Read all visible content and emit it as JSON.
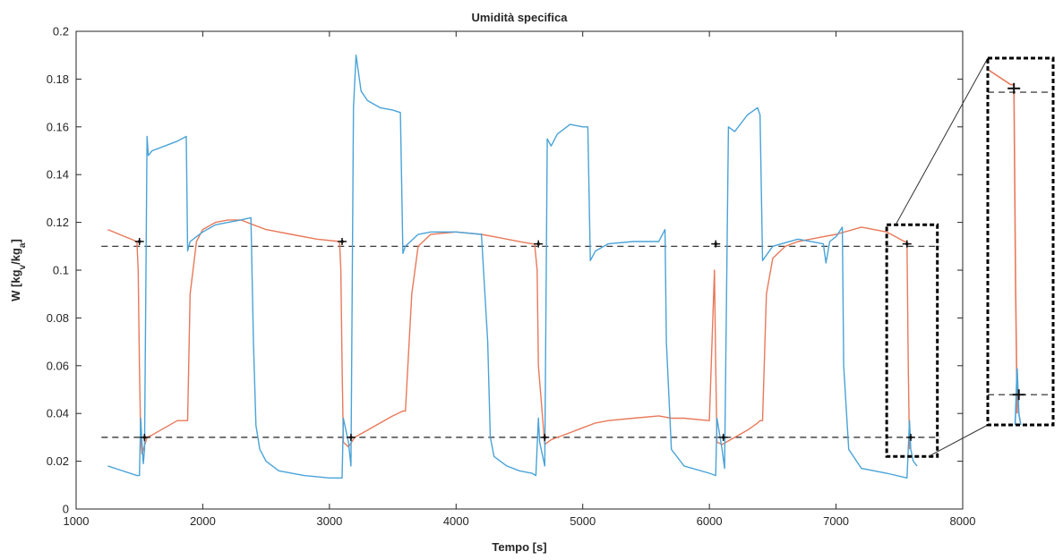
{
  "chart_data": {
    "type": "line",
    "title": "Umidità specifica",
    "xlabel": "Tempo [s]",
    "ylabel": {
      "main": "W [kg",
      "sub1": "v",
      "mid": "/kg",
      "sub2": "a",
      "end": "]"
    },
    "xlim": [
      1000,
      8000
    ],
    "ylim": [
      0,
      0.2
    ],
    "xticks": [
      "1000",
      "2000",
      "3000",
      "4000",
      "5000",
      "6000",
      "7000",
      "8000"
    ],
    "yticks": [
      "0",
      "0.02",
      "0.04",
      "0.06",
      "0.08",
      "0.1",
      "0.12",
      "0.14",
      "0.16",
      "0.18",
      "0.2"
    ],
    "grid": false,
    "reference_lines": [
      0.11,
      0.03
    ],
    "marker_points": [
      [
        1500,
        0.112
      ],
      [
        3100,
        0.112
      ],
      [
        4650,
        0.111
      ],
      [
        6050,
        0.111
      ],
      [
        7560,
        0.111
      ],
      [
        1540,
        0.03
      ],
      [
        3170,
        0.03
      ],
      [
        4700,
        0.03
      ],
      [
        6110,
        0.03
      ],
      [
        7590,
        0.03
      ]
    ],
    "series": [
      {
        "color": "#4aa3d8",
        "x": [
          1250,
          1480,
          1500,
          1510,
          1520,
          1530,
          1540,
          1560,
          1570,
          1600,
          1700,
          1800,
          1870,
          1880,
          1900,
          1950,
          2000,
          2100,
          2200,
          2300,
          2380,
          2400,
          2420,
          2450,
          2500,
          2600,
          2800,
          3000,
          3080,
          3100,
          3110,
          3150,
          3170,
          3190,
          3210,
          3250,
          3300,
          3400,
          3500,
          3560,
          3580,
          3600,
          3700,
          3800,
          4000,
          4200,
          4250,
          4270,
          4300,
          4400,
          4500,
          4600,
          4630,
          4650,
          4660,
          4700,
          4720,
          4750,
          4800,
          4900,
          5000,
          5040,
          5060,
          5100,
          5200,
          5400,
          5600,
          5650,
          5660,
          5700,
          5800,
          6000,
          6050,
          6060,
          6100,
          6120,
          6150,
          6200,
          6300,
          6380,
          6400,
          6420,
          6500,
          6700,
          6900,
          6920,
          6950,
          7000,
          7050,
          7060,
          7100,
          7200,
          7400,
          7560,
          7580,
          7590,
          7610,
          7640
        ],
        "y": [
          0.018,
          0.014,
          0.014,
          0.038,
          0.028,
          0.019,
          0.025,
          0.156,
          0.148,
          0.15,
          0.152,
          0.154,
          0.156,
          0.108,
          0.112,
          0.114,
          0.116,
          0.119,
          0.12,
          0.121,
          0.122,
          0.07,
          0.035,
          0.025,
          0.02,
          0.016,
          0.014,
          0.013,
          0.013,
          0.013,
          0.038,
          0.028,
          0.018,
          0.168,
          0.19,
          0.175,
          0.171,
          0.168,
          0.167,
          0.166,
          0.107,
          0.11,
          0.115,
          0.116,
          0.116,
          0.115,
          0.07,
          0.03,
          0.022,
          0.018,
          0.016,
          0.015,
          0.014,
          0.038,
          0.028,
          0.018,
          0.155,
          0.152,
          0.157,
          0.161,
          0.16,
          0.16,
          0.104,
          0.108,
          0.111,
          0.112,
          0.112,
          0.117,
          0.07,
          0.025,
          0.018,
          0.015,
          0.014,
          0.038,
          0.025,
          0.017,
          0.16,
          0.158,
          0.165,
          0.168,
          0.165,
          0.104,
          0.11,
          0.113,
          0.111,
          0.103,
          0.112,
          0.114,
          0.118,
          0.06,
          0.025,
          0.017,
          0.015,
          0.013,
          0.037,
          0.025,
          0.02,
          0.018
        ]
      },
      {
        "color": "#e8795a",
        "x": [
          1250,
          1480,
          1490,
          1500,
          1510,
          1520,
          1560,
          1600,
          1700,
          1800,
          1870,
          1880,
          1900,
          1950,
          2000,
          2100,
          2200,
          2300,
          2400,
          2500,
          2700,
          2900,
          3080,
          3090,
          3100,
          3110,
          3150,
          3200,
          3300,
          3400,
          3500,
          3580,
          3600,
          3650,
          3700,
          3800,
          4000,
          4200,
          4300,
          4400,
          4500,
          4600,
          4620,
          4640,
          4650,
          4700,
          4750,
          4800,
          4900,
          5000,
          5100,
          5200,
          5400,
          5600,
          5700,
          5800,
          6000,
          6040,
          6050,
          6060,
          6100,
          6200,
          6300,
          6380,
          6400,
          6420,
          6450,
          6500,
          6600,
          6700,
          6800,
          6900,
          7000,
          7200,
          7400,
          7540,
          7560,
          7570,
          7580
        ],
        "y": [
          0.117,
          0.112,
          0.1,
          0.06,
          0.03,
          0.023,
          0.03,
          0.031,
          0.034,
          0.037,
          0.037,
          0.037,
          0.09,
          0.112,
          0.117,
          0.12,
          0.121,
          0.121,
          0.119,
          0.117,
          0.115,
          0.113,
          0.112,
          0.1,
          0.06,
          0.028,
          0.026,
          0.03,
          0.033,
          0.036,
          0.039,
          0.041,
          0.041,
          0.09,
          0.11,
          0.115,
          0.116,
          0.115,
          0.114,
          0.113,
          0.112,
          0.111,
          0.111,
          0.1,
          0.06,
          0.027,
          0.029,
          0.03,
          0.032,
          0.034,
          0.036,
          0.037,
          0.038,
          0.039,
          0.038,
          0.038,
          0.037,
          0.1,
          0.06,
          0.028,
          0.027,
          0.03,
          0.033,
          0.036,
          0.037,
          0.037,
          0.09,
          0.105,
          0.11,
          0.112,
          0.113,
          0.114,
          0.115,
          0.118,
          0.116,
          0.112,
          0.112,
          0.06,
          0.025
        ]
      }
    ],
    "inset": {
      "zoom_box": {
        "x": [
          7400,
          7800
        ],
        "y": [
          0.022,
          0.119
        ]
      }
    }
  }
}
